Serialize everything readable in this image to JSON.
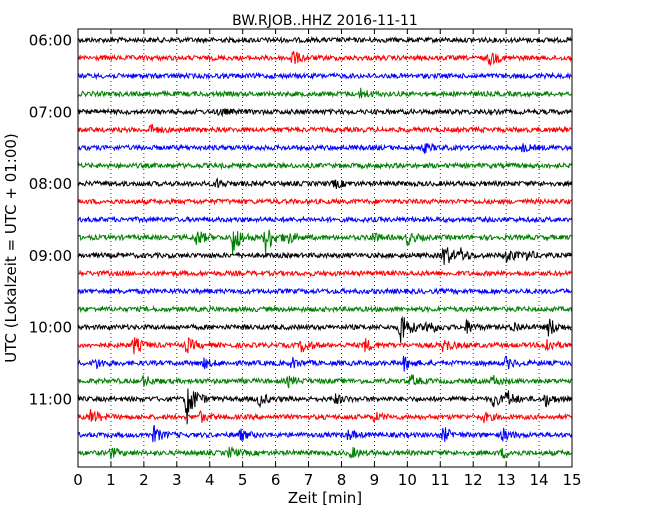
{
  "chart_data": {
    "type": "line",
    "title": "BW.RJOB..HHZ 2016-11-11",
    "xlabel": "Zeit  [min]",
    "ylabel": "UTC (Lokalzeit = UTC + 01:00)",
    "xlim": [
      0,
      15
    ],
    "x_ticks": [
      "0",
      "1",
      "2",
      "3",
      "4",
      "5",
      "6",
      "7",
      "8",
      "9",
      "10",
      "11",
      "12",
      "13",
      "14",
      "15"
    ],
    "y_ticks": [
      "06:00",
      "07:00",
      "08:00",
      "09:00",
      "10:00",
      "11:00"
    ],
    "trace_interval_min": 15,
    "grid": "vertical dotted",
    "color_cycle": [
      "#000000",
      "#ff0000",
      "#0000ff",
      "#007f00"
    ],
    "traces": [
      {
        "start": "06:00",
        "color": "#000000",
        "events": []
      },
      {
        "start": "06:15",
        "color": "#ff0000",
        "events": [
          {
            "t": 6.5,
            "amp": 1.0
          },
          {
            "t": 12.5,
            "amp": 0.9
          }
        ]
      },
      {
        "start": "06:30",
        "color": "#0000ff",
        "events": []
      },
      {
        "start": "06:45",
        "color": "#007f00",
        "events": [
          {
            "t": 8.6,
            "amp": 0.6
          }
        ]
      },
      {
        "start": "07:00",
        "color": "#000000",
        "events": [
          {
            "t": 4.3,
            "amp": 0.4
          }
        ]
      },
      {
        "start": "07:15",
        "color": "#ff0000",
        "events": [
          {
            "t": 2.2,
            "amp": 0.6
          }
        ]
      },
      {
        "start": "07:30",
        "color": "#0000ff",
        "events": [
          {
            "t": 10.5,
            "amp": 0.5
          },
          {
            "t": 13.5,
            "amp": 0.4
          }
        ]
      },
      {
        "start": "07:45",
        "color": "#007f00",
        "events": []
      },
      {
        "start": "08:00",
        "color": "#000000",
        "events": [
          {
            "t": 4.2,
            "amp": 0.5
          },
          {
            "t": 7.8,
            "amp": 0.5
          }
        ]
      },
      {
        "start": "08:15",
        "color": "#ff0000",
        "events": []
      },
      {
        "start": "08:30",
        "color": "#0000ff",
        "events": []
      },
      {
        "start": "08:45",
        "color": "#007f00",
        "events": [
          {
            "t": 3.6,
            "amp": 1.0
          },
          {
            "t": 4.7,
            "amp": 2.2
          },
          {
            "t": 5.7,
            "amp": 2.0
          },
          {
            "t": 6.3,
            "amp": 0.9
          },
          {
            "t": 8.9,
            "amp": 0.6
          },
          {
            "t": 10.0,
            "amp": 0.8
          }
        ]
      },
      {
        "start": "09:00",
        "color": "#000000",
        "events": [
          {
            "t": 11.1,
            "amp": 1.6
          },
          {
            "t": 11.6,
            "amp": 0.8
          },
          {
            "t": 13.0,
            "amp": 1.0
          },
          {
            "t": 13.6,
            "amp": 0.6
          }
        ]
      },
      {
        "start": "09:15",
        "color": "#ff0000",
        "events": []
      },
      {
        "start": "09:30",
        "color": "#0000ff",
        "events": []
      },
      {
        "start": "09:45",
        "color": "#007f00",
        "events": []
      },
      {
        "start": "10:00",
        "color": "#000000",
        "events": [
          {
            "t": 9.8,
            "amp": 2.4
          },
          {
            "t": 10.6,
            "amp": 1.0
          },
          {
            "t": 11.8,
            "amp": 0.8
          },
          {
            "t": 13.2,
            "amp": 0.7
          },
          {
            "t": 14.3,
            "amp": 1.2
          }
        ]
      },
      {
        "start": "10:15",
        "color": "#ff0000",
        "events": [
          {
            "t": 1.7,
            "amp": 1.0
          },
          {
            "t": 3.3,
            "amp": 0.9
          },
          {
            "t": 6.8,
            "amp": 0.9
          },
          {
            "t": 8.7,
            "amp": 0.8
          },
          {
            "t": 11.1,
            "amp": 0.9
          },
          {
            "t": 14.2,
            "amp": 1.0
          }
        ]
      },
      {
        "start": "10:30",
        "color": "#0000ff",
        "events": [
          {
            "t": 0.5,
            "amp": 0.7
          },
          {
            "t": 3.8,
            "amp": 0.6
          },
          {
            "t": 6.5,
            "amp": 0.6
          },
          {
            "t": 9.9,
            "amp": 0.8
          },
          {
            "t": 13.0,
            "amp": 0.7
          }
        ]
      },
      {
        "start": "10:45",
        "color": "#007f00",
        "events": [
          {
            "t": 2.0,
            "amp": 0.6
          },
          {
            "t": 6.4,
            "amp": 0.6
          },
          {
            "t": 10.1,
            "amp": 0.7
          },
          {
            "t": 12.6,
            "amp": 0.6
          }
        ]
      },
      {
        "start": "11:00",
        "color": "#000000",
        "events": [
          {
            "t": 3.3,
            "amp": 3.2
          },
          {
            "t": 5.5,
            "amp": 0.8
          },
          {
            "t": 7.8,
            "amp": 0.6
          },
          {
            "t": 12.6,
            "amp": 0.9
          },
          {
            "t": 13.0,
            "amp": 1.1
          },
          {
            "t": 14.2,
            "amp": 0.8
          }
        ]
      },
      {
        "start": "11:15",
        "color": "#ff0000",
        "events": [
          {
            "t": 0.4,
            "amp": 1.0
          },
          {
            "t": 3.7,
            "amp": 0.6
          },
          {
            "t": 9.0,
            "amp": 0.5
          },
          {
            "t": 12.3,
            "amp": 0.6
          }
        ]
      },
      {
        "start": "11:30",
        "color": "#0000ff",
        "events": [
          {
            "t": 2.3,
            "amp": 1.0
          },
          {
            "t": 4.9,
            "amp": 0.7
          },
          {
            "t": 8.2,
            "amp": 0.6
          },
          {
            "t": 11.1,
            "amp": 0.9
          },
          {
            "t": 12.9,
            "amp": 0.7
          }
        ]
      },
      {
        "start": "11:45",
        "color": "#007f00",
        "events": [
          {
            "t": 1.0,
            "amp": 0.6
          },
          {
            "t": 4.6,
            "amp": 0.6
          },
          {
            "t": 8.3,
            "amp": 0.6
          },
          {
            "t": 12.9,
            "amp": 0.6
          }
        ]
      }
    ]
  }
}
